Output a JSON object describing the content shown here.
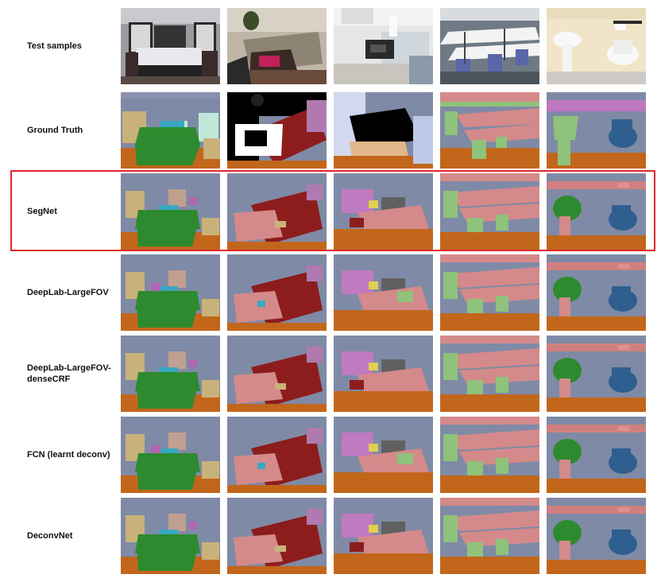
{
  "rows": [
    {
      "label": "Test samples",
      "kind": "photo"
    },
    {
      "label": "Ground Truth",
      "kind": "gt"
    },
    {
      "label": "SegNet",
      "kind": "pred",
      "highlighted": true
    },
    {
      "label": "DeepLab-LargeFOV",
      "kind": "pred"
    },
    {
      "label": "DeepLab-LargeFOV-\ndenseCRF",
      "kind": "pred"
    },
    {
      "label": "FCN (learnt deconv)",
      "kind": "pred"
    },
    {
      "label": "DeconvNet",
      "kind": "pred"
    }
  ],
  "scenes": [
    "bedroom",
    "living-room",
    "kitchen",
    "classroom",
    "bathroom"
  ],
  "class_colors": {
    "wall": "#7f8aa6",
    "floor": "#c2661b",
    "bed": "#2e8a2e",
    "sofa": "#8d1d1d",
    "table": "#d48a8a",
    "chair": "#8fc27a",
    "furniture": "#c9b27a",
    "picture": "#a7c2e1",
    "object": "#b066b0",
    "unlabeled": "#000000",
    "toilet": "#2f5f8f",
    "accent": "#38a8c0",
    "highlight_border": "#e0282d"
  }
}
